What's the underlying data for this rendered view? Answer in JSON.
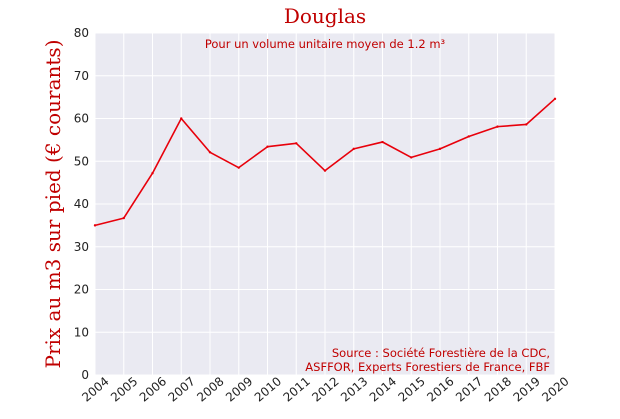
{
  "colors": {
    "accent": "#c00000",
    "plot_bg": "#eaeaf2",
    "grid": "#ffffff",
    "tick_text": "#222222"
  },
  "chart_data": {
    "type": "line",
    "title": "Douglas",
    "subtitle": "Pour un volume unitaire moyen de 1.2 m³",
    "ylabel": "Prix au m3 sur pied (€ courants)",
    "xlabel": "",
    "x": [
      "2004",
      "2005",
      "2006",
      "2007",
      "2008",
      "2009",
      "2010",
      "2011",
      "2012",
      "2013",
      "2014",
      "2015",
      "2016",
      "2017",
      "2018",
      "2019",
      "2020"
    ],
    "series": [
      {
        "values": [
          35.0,
          36.7,
          47.2,
          60.0,
          52.1,
          48.5,
          53.4,
          54.2,
          47.8,
          52.9,
          54.5,
          50.9,
          52.9,
          55.8,
          58.1,
          58.6,
          64.6
        ],
        "color": "#e8000b"
      }
    ],
    "ylim": [
      0,
      80
    ],
    "yticks": [
      "0",
      "10",
      "20",
      "30",
      "40",
      "50",
      "60",
      "70",
      "80"
    ],
    "grid": true,
    "legend": "none",
    "source_lines": [
      "Source : Société Forestière de la CDC,",
      "ASFFOR, Experts Forestiers de France, FBF"
    ]
  }
}
